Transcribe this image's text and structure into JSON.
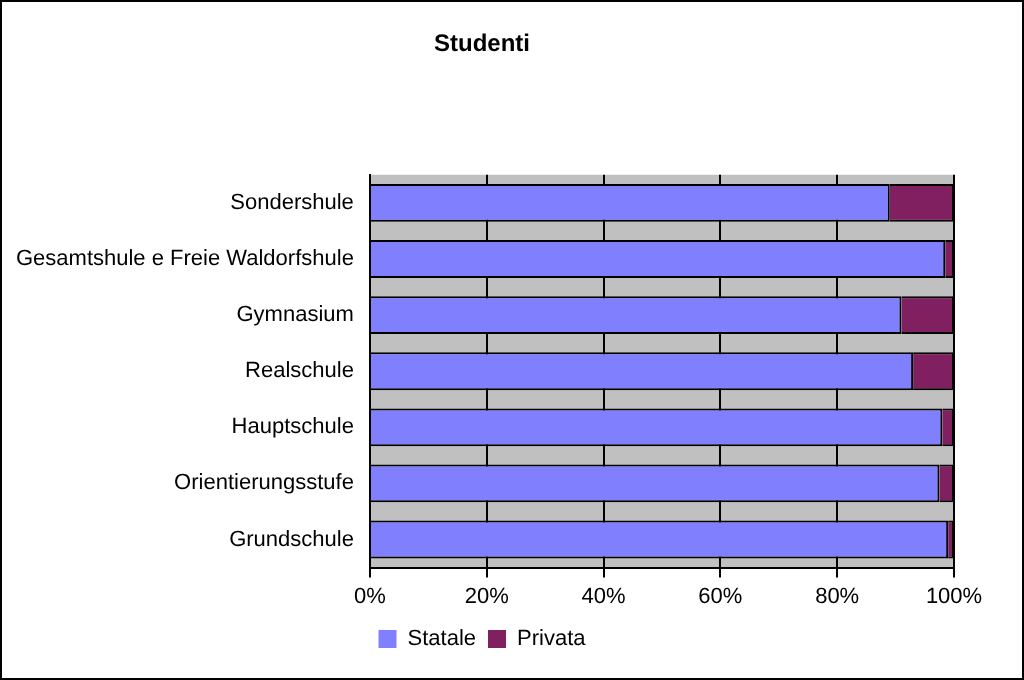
{
  "chart_data": {
    "type": "bar",
    "title": "Studenti",
    "orientation": "horizontal",
    "stacked": true,
    "categories": [
      "Sondershule",
      "Gesamtshule e Freie Waldorfshule",
      "Gymnasium",
      "Realschule",
      "Hauptschule",
      "Orientierungsstufe",
      "Grundschule"
    ],
    "series": [
      {
        "name": "Statale",
        "color": "#8080ff",
        "values": [
          89,
          98.5,
          91,
          93,
          98,
          97.5,
          99
        ]
      },
      {
        "name": "Privata",
        "color": "#802060",
        "values": [
          11,
          1.5,
          9,
          7,
          2,
          2.5,
          1
        ]
      }
    ],
    "xlim": [
      0,
      100
    ],
    "xticks": [
      {
        "value": 0,
        "label": "0%"
      },
      {
        "value": 20,
        "label": "20%"
      },
      {
        "value": 40,
        "label": "40%"
      },
      {
        "value": 60,
        "label": "60%"
      },
      {
        "value": 80,
        "label": "80%"
      },
      {
        "value": 100,
        "label": "100%"
      }
    ],
    "grid": "x",
    "legend": "bottom"
  }
}
